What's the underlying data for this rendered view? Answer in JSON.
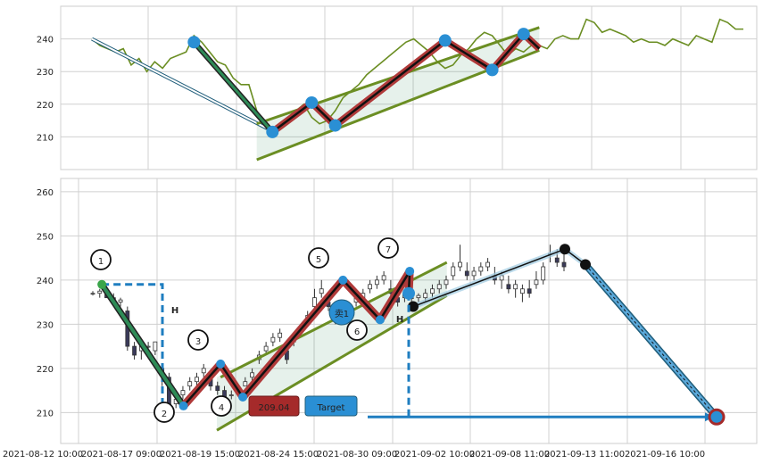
{
  "chart_data": [
    {
      "type": "line",
      "panel": "top",
      "ylim": [
        200,
        250
      ],
      "y_ticks": [
        210,
        220,
        230,
        240
      ],
      "grid": true,
      "price_color": "#6b8e23",
      "series": [
        {
          "values": [
            240,
            238,
            237,
            236,
            237,
            232,
            234,
            230,
            233,
            231,
            234,
            235,
            236,
            241,
            239,
            236,
            233,
            232,
            228,
            226,
            226,
            218,
            214,
            212,
            214,
            216,
            218,
            220,
            216,
            214,
            215,
            218,
            222,
            224,
            226,
            229,
            231,
            233,
            235,
            237,
            239,
            240,
            238,
            236,
            233,
            231,
            232,
            235,
            237,
            240,
            242,
            241,
            238,
            235,
            237,
            236,
            238,
            238,
            237,
            240,
            241,
            240,
            240,
            246,
            245,
            242,
            243,
            242,
            241,
            239,
            240,
            239,
            239,
            238,
            240,
            239,
            238,
            241,
            240,
            239,
            246,
            245,
            243,
            243
          ]
        }
      ],
      "pattern_points": [
        {
          "i": 13,
          "v": 239
        },
        {
          "i": 23,
          "v": 211.5
        },
        {
          "i": 28,
          "v": 220.5
        },
        {
          "i": 31,
          "v": 213.5
        },
        {
          "i": 45,
          "v": 239.5
        },
        {
          "i": 51,
          "v": 230.5
        },
        {
          "i": 55,
          "v": 241.5
        },
        {
          "i": 57,
          "v": 237
        }
      ],
      "channel": {
        "upper": [
          [
            21,
            214
          ],
          [
            57,
            243.5
          ]
        ],
        "lower": [
          [
            21,
            203
          ],
          [
            57,
            236.5
          ]
        ]
      }
    },
    {
      "type": "candlestick",
      "panel": "bottom",
      "ylim": [
        203,
        263
      ],
      "y_ticks": [
        210,
        220,
        230,
        240,
        250,
        260
      ],
      "x_tick_labels": [
        "2021-08-12 10:00",
        "2021-08-17 09:00",
        "2021-08-19 15:00",
        "2021-08-24 15:00",
        "2021-08-30 09:00",
        "2021-09-02 10:00",
        "2021-09-08 11:00",
        "2021-09-13 11:00",
        "2021-09-16 10:00"
      ],
      "grid": true,
      "candles": [
        [
          237,
          237.5,
          236.5,
          237
        ],
        [
          237,
          238,
          236,
          237.5
        ],
        [
          237.5,
          238.5,
          236.5,
          236
        ],
        [
          236,
          237,
          234.5,
          235
        ],
        [
          235,
          236,
          234,
          235.5
        ],
        [
          233,
          234,
          224,
          225
        ],
        [
          225,
          226,
          222,
          223
        ],
        [
          224,
          226,
          222,
          225
        ],
        [
          225,
          226,
          223,
          225
        ],
        [
          224,
          226,
          223,
          226
        ],
        [
          220,
          221,
          216,
          219
        ],
        [
          218,
          219,
          210,
          211
        ],
        [
          212,
          214,
          211,
          213
        ],
        [
          214,
          216,
          213,
          215
        ],
        [
          216,
          218,
          215,
          217
        ],
        [
          217,
          219,
          216,
          218
        ],
        [
          219,
          221,
          218,
          220
        ],
        [
          218,
          219,
          215,
          216
        ],
        [
          216,
          217,
          214,
          215
        ],
        [
          215,
          216,
          213,
          213.5
        ],
        [
          214,
          215,
          213,
          214
        ],
        [
          215,
          216,
          214,
          215.5
        ],
        [
          216,
          218,
          216,
          217
        ],
        [
          218,
          220,
          217,
          219
        ],
        [
          222,
          224,
          221,
          223
        ],
        [
          224,
          226,
          223,
          225
        ],
        [
          226,
          228,
          225,
          227
        ],
        [
          227,
          229,
          226,
          228
        ],
        [
          224,
          226,
          221,
          222
        ],
        [
          226,
          228,
          225,
          227
        ],
        [
          228,
          230,
          227,
          229
        ],
        [
          231,
          233,
          230,
          232
        ],
        [
          234,
          238,
          232,
          236
        ],
        [
          237,
          240,
          236,
          238
        ],
        [
          235,
          237,
          233,
          234
        ],
        [
          232,
          234,
          230,
          231
        ],
        [
          231,
          233,
          230,
          232
        ],
        [
          233,
          235,
          232,
          234
        ],
        [
          235,
          237,
          234,
          236
        ],
        [
          236,
          238,
          235,
          237
        ],
        [
          238,
          240,
          237,
          239
        ],
        [
          239,
          241,
          238,
          240
        ],
        [
          240,
          242,
          239,
          241
        ],
        [
          238,
          240,
          236,
          237
        ],
        [
          236,
          238,
          234,
          235
        ],
        [
          236,
          238,
          235,
          237
        ],
        [
          236,
          237,
          235,
          236
        ],
        [
          236,
          237,
          235,
          236.5
        ],
        [
          236,
          238,
          235,
          237
        ],
        [
          237,
          239,
          236,
          238
        ],
        [
          238,
          240,
          237,
          239
        ],
        [
          239,
          241,
          238,
          240
        ],
        [
          241,
          244,
          240,
          243
        ],
        [
          243,
          248,
          242,
          244
        ],
        [
          242,
          244,
          240,
          241
        ],
        [
          241,
          243,
          240,
          242
        ],
        [
          242,
          244,
          241,
          243
        ],
        [
          243,
          245,
          242,
          244
        ],
        [
          241,
          243,
          239,
          240
        ],
        [
          240,
          242,
          238,
          241
        ],
        [
          239,
          241,
          237,
          238
        ],
        [
          238,
          240,
          236,
          239
        ],
        [
          237,
          239,
          235,
          238
        ],
        [
          238,
          240,
          236,
          237
        ],
        [
          239,
          242,
          238,
          240
        ],
        [
          240,
          244,
          239,
          243
        ],
        [
          246,
          248,
          244,
          246
        ],
        [
          245,
          247,
          243,
          244
        ],
        [
          244,
          246,
          242,
          243
        ]
      ],
      "candle_x_start": 0,
      "pattern": {
        "points": [
          {
            "label": "1",
            "i": 0.5,
            "v": 239
          },
          {
            "label": "2",
            "i": 11.5,
            "v": 211.5
          },
          {
            "label": "3",
            "i": 16.5,
            "v": 221
          },
          {
            "label": "4",
            "i": 19.5,
            "v": 213.5
          },
          {
            "label": "5",
            "i": 33,
            "v": 240
          },
          {
            "label": "6",
            "i": 38,
            "v": 231
          },
          {
            "label": "7",
            "i": 42,
            "v": 242
          }
        ],
        "channel": {
          "upper": [
            [
              16.5,
              218
            ],
            [
              47,
              244
            ]
          ],
          "lower": [
            [
              16.5,
              207
            ],
            [
              47,
              236.5
            ]
          ]
        },
        "projection": [
          {
            "i": 45.5,
            "v": 234
          },
          {
            "i": 63,
            "v": 247
          },
          {
            "i": 65.5,
            "v": 243
          },
          {
            "i": 83,
            "v": 209
          }
        ],
        "height_marker": "H",
        "sell_label": "卖1",
        "price_label": "209.04",
        "target_label": "Target"
      },
      "colors": {
        "up_leg": "#2e8b57",
        "zig": "#b03a3a",
        "channel": "#6b8e23",
        "projection": "#1f7ec0",
        "point": "#2a8fd4",
        "price_badge": "#a52a2a",
        "target_badge": "#2a8fd4"
      }
    }
  ]
}
